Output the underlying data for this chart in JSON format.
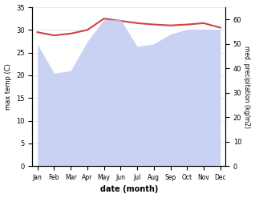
{
  "months": [
    "Jan",
    "Feb",
    "Mar",
    "Apr",
    "May",
    "Jun",
    "Jul",
    "Aug",
    "Sep",
    "Oct",
    "Nov",
    "Dec"
  ],
  "month_x": [
    0,
    1,
    2,
    3,
    4,
    5,
    6,
    7,
    8,
    9,
    10,
    11
  ],
  "temp_max": [
    29.5,
    28.8,
    29.2,
    30.0,
    32.5,
    32.0,
    31.5,
    31.2,
    31.0,
    31.2,
    31.5,
    30.5
  ],
  "precipitation": [
    50.0,
    38.0,
    39.0,
    51.0,
    60.0,
    60.0,
    49.0,
    50.0,
    54.0,
    56.0,
    56.0,
    56.0
  ],
  "temp_ylim": [
    0,
    35
  ],
  "precip_ylim": [
    0,
    65
  ],
  "temp_yticks": [
    0,
    5,
    10,
    15,
    20,
    25,
    30,
    35
  ],
  "precip_yticks": [
    0,
    10,
    20,
    30,
    40,
    50,
    60
  ],
  "temp_color": "#cc4444",
  "precip_fill_color": "#b8c4f0",
  "precip_fill_alpha": 0.75,
  "xlabel": "date (month)",
  "ylabel_left": "max temp (C)",
  "ylabel_right": "med. precipitation (kg/m2)",
  "bg_color": "#ffffff",
  "fig_width": 3.18,
  "fig_height": 2.47,
  "dpi": 100
}
